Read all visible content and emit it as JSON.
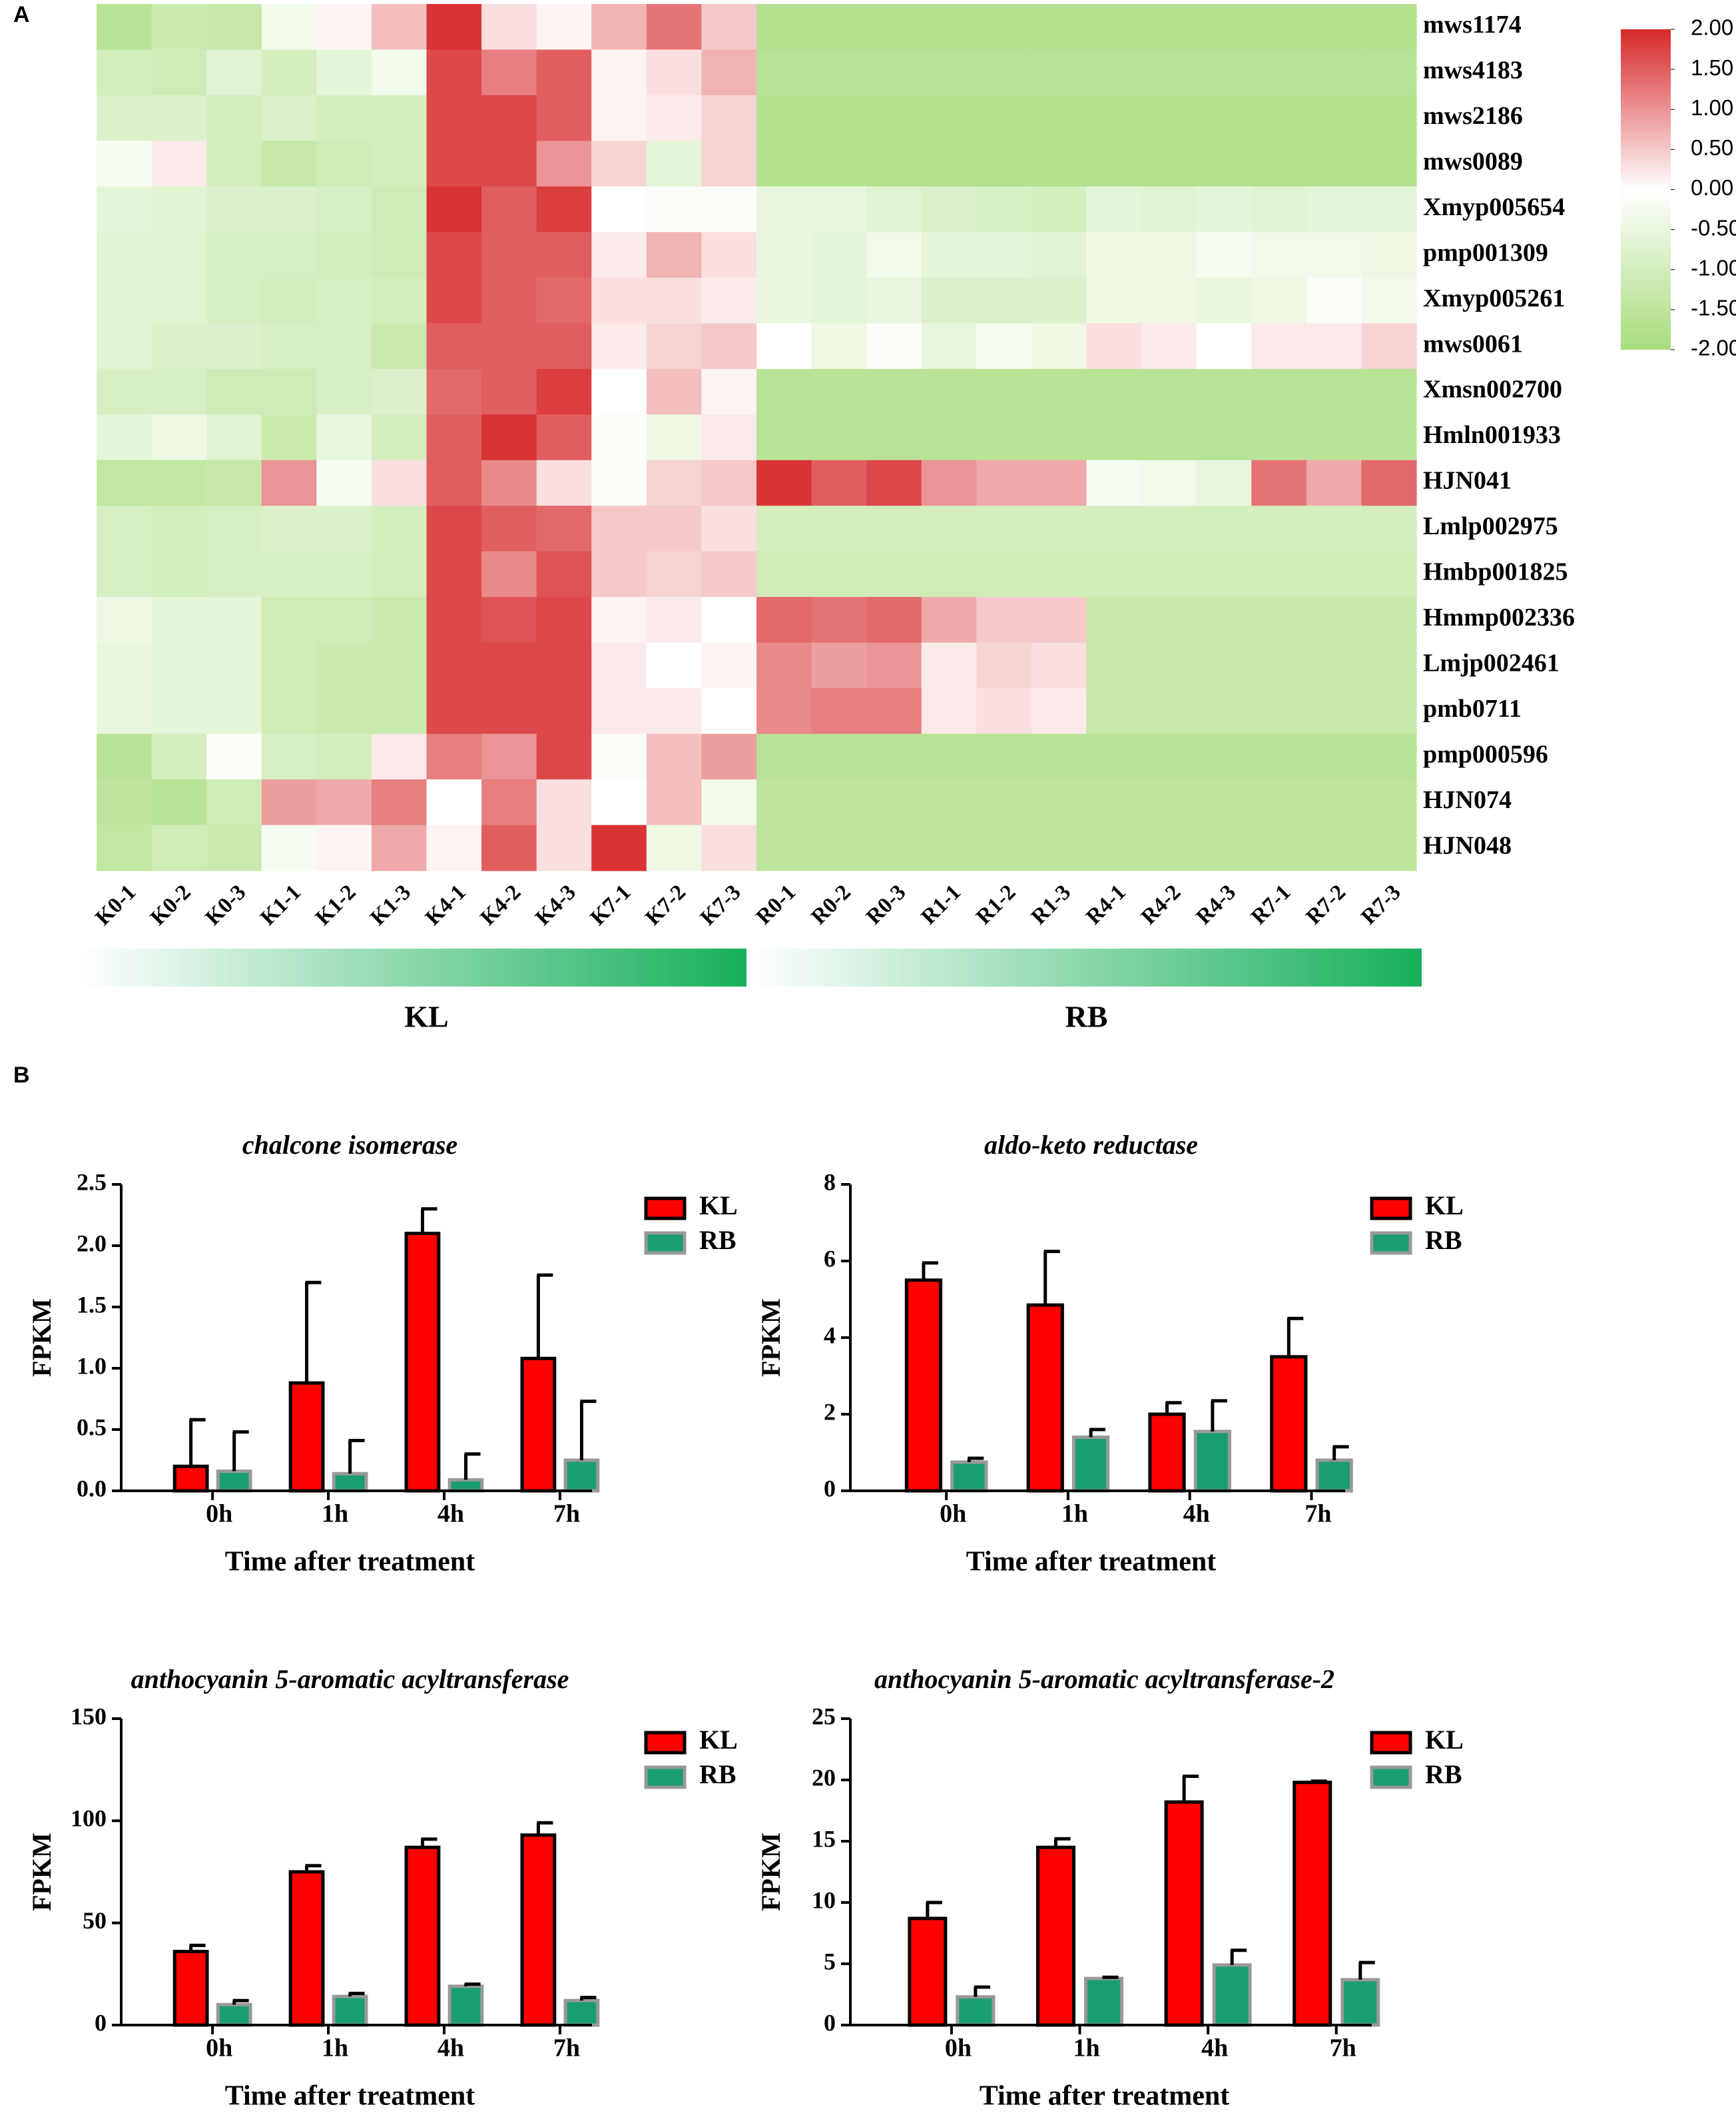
{
  "chart_data": [
    {
      "type": "heatmap",
      "panel": "A",
      "rows": [
        "mws1174",
        "mws4183",
        "mws2186",
        "mws0089",
        "Xmyp005654",
        "pmp001309",
        "Xmyp005261",
        "mws0061",
        "Xmsn002700",
        "Hmln001933",
        "HJN041",
        "Lmlp002975",
        "Hmbp001825",
        "Hmmp002336",
        "Lmjp002461",
        "pmb0711",
        "pmp000596",
        "HJN074",
        "HJN048"
      ],
      "columns": [
        "K0-1",
        "K0-2",
        "K0-3",
        "K1-1",
        "K1-2",
        "K1-3",
        "K4-1",
        "K4-2",
        "K4-3",
        "K7-1",
        "K7-2",
        "K7-3",
        "R0-1",
        "R0-2",
        "R0-3",
        "R1-1",
        "R1-2",
        "R1-3",
        "R4-1",
        "R4-2",
        "R4-3",
        "R7-1",
        "R7-2",
        "R7-3"
      ],
      "groups": [
        "KL",
        "RB"
      ],
      "values": [
        [
          -1.6,
          -1.2,
          -1.3,
          -0.3,
          0.1,
          0.6,
          1.9,
          0.3,
          0.1,
          0.7,
          1.3,
          0.5,
          -1.7,
          -1.7,
          -1.7,
          -1.7,
          -1.7,
          -1.7,
          -1.7,
          -1.7,
          -1.7,
          -1.7,
          -1.7,
          -1.7
        ],
        [
          -1.0,
          -1.1,
          -0.7,
          -1.0,
          -0.6,
          -0.3,
          1.7,
          1.2,
          1.5,
          0.1,
          0.3,
          0.7,
          -1.6,
          -1.6,
          -1.6,
          -1.6,
          -1.6,
          -1.6,
          -1.6,
          -1.6,
          -1.6,
          -1.6,
          -1.6,
          -1.6
        ],
        [
          -0.8,
          -0.8,
          -1.0,
          -0.8,
          -1.0,
          -1.0,
          1.7,
          1.7,
          1.5,
          0.1,
          0.2,
          0.4,
          -1.7,
          -1.7,
          -1.7,
          -1.7,
          -1.7,
          -1.7,
          -1.7,
          -1.7,
          -1.7,
          -1.7,
          -1.7,
          -1.7
        ],
        [
          -0.2,
          0.2,
          -1.0,
          -1.3,
          -1.1,
          -1.0,
          1.7,
          1.7,
          1.0,
          0.4,
          -0.6,
          0.4,
          -1.7,
          -1.7,
          -1.7,
          -1.7,
          -1.7,
          -1.7,
          -1.7,
          -1.7,
          -1.7,
          -1.7,
          -1.7,
          -1.7
        ],
        [
          -0.6,
          -0.7,
          -0.8,
          -0.8,
          -0.9,
          -1.1,
          1.9,
          1.5,
          1.8,
          0.0,
          -0.1,
          -0.1,
          -0.5,
          -0.5,
          -0.7,
          -0.8,
          -0.9,
          -1.0,
          -0.6,
          -0.7,
          -0.6,
          -0.7,
          -0.6,
          -0.6
        ],
        [
          -0.7,
          -0.7,
          -0.9,
          -0.9,
          -1.0,
          -1.1,
          1.7,
          1.5,
          1.5,
          0.2,
          0.7,
          0.3,
          -0.5,
          -0.6,
          -0.3,
          -0.6,
          -0.6,
          -0.7,
          -0.4,
          -0.4,
          -0.2,
          -0.3,
          -0.3,
          -0.4
        ],
        [
          -0.7,
          -0.7,
          -0.9,
          -1.0,
          -0.9,
          -1.0,
          1.7,
          1.5,
          1.4,
          0.3,
          0.3,
          0.2,
          -0.5,
          -0.6,
          -0.5,
          -0.8,
          -0.8,
          -0.8,
          -0.4,
          -0.4,
          -0.5,
          -0.4,
          -0.1,
          -0.3
        ],
        [
          -0.7,
          -0.8,
          -0.8,
          -0.9,
          -0.9,
          -1.2,
          1.5,
          1.5,
          1.5,
          0.2,
          0.4,
          0.5,
          0.0,
          -0.4,
          -0.1,
          -0.5,
          -0.2,
          -0.4,
          0.3,
          0.2,
          0.0,
          0.2,
          0.2,
          0.4
        ],
        [
          -0.9,
          -0.9,
          -1.1,
          -1.1,
          -0.9,
          -0.8,
          1.4,
          1.5,
          1.8,
          0.0,
          0.6,
          0.1,
          -1.6,
          -1.6,
          -1.6,
          -1.6,
          -1.6,
          -1.6,
          -1.6,
          -1.6,
          -1.6,
          -1.6,
          -1.6,
          -1.6
        ],
        [
          -0.6,
          -0.4,
          -0.7,
          -1.2,
          -0.5,
          -1.0,
          1.5,
          1.9,
          1.5,
          -0.1,
          -0.4,
          0.2,
          -1.6,
          -1.6,
          -1.6,
          -1.6,
          -1.6,
          -1.6,
          -1.6,
          -1.6,
          -1.6,
          -1.6,
          -1.6,
          -1.6
        ],
        [
          -1.4,
          -1.4,
          -1.3,
          1.0,
          -0.2,
          0.3,
          1.5,
          1.1,
          0.3,
          -0.1,
          0.4,
          0.5,
          1.9,
          1.5,
          1.7,
          1.0,
          0.8,
          0.8,
          -0.2,
          -0.3,
          -0.5,
          1.3,
          0.8,
          1.4
        ],
        [
          -0.9,
          -1.0,
          -0.9,
          -0.8,
          -0.8,
          -1.0,
          1.7,
          1.5,
          1.4,
          0.5,
          0.5,
          0.3,
          -1.0,
          -1.0,
          -1.0,
          -1.0,
          -1.0,
          -1.0,
          -1.0,
          -1.0,
          -1.0,
          -1.0,
          -1.0,
          -1.0
        ],
        [
          -0.9,
          -1.0,
          -0.9,
          -0.9,
          -0.9,
          -1.0,
          1.7,
          1.1,
          1.6,
          0.5,
          0.4,
          0.5,
          -1.1,
          -1.1,
          -1.1,
          -1.1,
          -1.1,
          -1.1,
          -1.1,
          -1.1,
          -1.1,
          -1.1,
          -1.1,
          -1.1
        ],
        [
          -0.4,
          -0.6,
          -0.6,
          -1.1,
          -1.1,
          -1.2,
          1.7,
          1.6,
          1.7,
          0.1,
          0.2,
          0.0,
          1.4,
          1.3,
          1.4,
          0.8,
          0.5,
          0.5,
          -1.3,
          -1.3,
          -1.3,
          -1.3,
          -1.3,
          -1.3
        ],
        [
          -0.5,
          -0.6,
          -0.6,
          -1.1,
          -1.2,
          -1.2,
          1.7,
          1.7,
          1.7,
          0.2,
          0.0,
          0.1,
          1.1,
          0.9,
          1.0,
          0.2,
          0.4,
          0.3,
          -1.3,
          -1.3,
          -1.3,
          -1.3,
          -1.3,
          -1.3
        ],
        [
          -0.5,
          -0.6,
          -0.6,
          -1.1,
          -1.2,
          -1.2,
          1.7,
          1.7,
          1.7,
          0.2,
          0.2,
          0.0,
          1.1,
          1.2,
          1.2,
          0.2,
          0.3,
          0.2,
          -1.3,
          -1.3,
          -1.3,
          -1.3,
          -1.3,
          -1.3
        ],
        [
          -1.6,
          -1.0,
          -0.1,
          -0.9,
          -1.0,
          0.2,
          1.2,
          1.0,
          1.7,
          -0.1,
          0.6,
          0.9,
          -1.6,
          -1.6,
          -1.6,
          -1.6,
          -1.6,
          -1.6,
          -1.6,
          -1.6,
          -1.6,
          -1.6,
          -1.6,
          -1.6
        ],
        [
          -1.5,
          -1.6,
          -1.1,
          0.9,
          0.8,
          1.2,
          0.0,
          1.2,
          0.3,
          0.0,
          0.6,
          -0.3,
          -1.5,
          -1.5,
          -1.5,
          -1.5,
          -1.5,
          -1.5,
          -1.5,
          -1.5,
          -1.5,
          -1.5,
          -1.5,
          -1.5
        ],
        [
          -1.4,
          -1.1,
          -1.2,
          -0.2,
          0.1,
          0.8,
          0.1,
          1.5,
          0.3,
          1.9,
          -0.4,
          0.3,
          -1.5,
          -1.5,
          -1.5,
          -1.5,
          -1.5,
          -1.5,
          -1.5,
          -1.5,
          -1.5,
          -1.5,
          -1.5,
          -1.5
        ]
      ],
      "colormap": [
        "#a8dc7c",
        "#ffffff",
        "#d7282a"
      ],
      "colorbar_lim": [
        -2,
        2
      ],
      "colorbar_ticks": [
        {
          "value": 2,
          "label": "2.00"
        },
        {
          "value": 1.5,
          "label": "1.50"
        },
        {
          "value": 1,
          "label": "1.00"
        },
        {
          "value": 0.5,
          "label": "0.50"
        },
        {
          "value": 0,
          "label": "0.00"
        },
        {
          "value": -0.5,
          "label": "-0.50"
        },
        {
          "value": -1,
          "label": "-1.00"
        },
        {
          "value": -1.5,
          "label": "-1.50"
        },
        {
          "value": -2,
          "label": "-2.00"
        }
      ]
    },
    {
      "type": "bar",
      "panel": "B",
      "title": "chalcone isomerase",
      "xlabel": "Time after treatment",
      "ylabel": "FPKM",
      "categories": [
        "0h",
        "1h",
        "4h",
        "7h"
      ],
      "ylim": [
        0,
        2.5
      ],
      "yticks": [
        {
          "value": 0,
          "label": "0.0"
        },
        0.5,
        {
          "value": 1,
          "label": "1.0"
        },
        1.5,
        {
          "value": 2,
          "label": "2.0"
        },
        2.5
      ],
      "series": [
        {
          "name": "KL",
          "color": "#ff0000",
          "values": [
            0.2,
            0.88,
            2.1,
            1.08
          ],
          "errors": [
            0.38,
            0.82,
            0.2,
            0.68
          ]
        },
        {
          "name": "RB",
          "color": "#1a9e70",
          "values": [
            0.16,
            0.14,
            0.09,
            0.25
          ],
          "errors": [
            0.32,
            0.27,
            0.21,
            0.48
          ]
        }
      ]
    },
    {
      "type": "bar",
      "title": "aldo-keto reductase",
      "xlabel": "Time after treatment",
      "ylabel": "FPKM",
      "categories": [
        "0h",
        "1h",
        "4h",
        "7h"
      ],
      "ylim": [
        0,
        8
      ],
      "yticks": [
        0,
        2,
        4,
        6,
        8
      ],
      "series": [
        {
          "name": "KL",
          "color": "#ff0000",
          "values": [
            5.5,
            4.85,
            2.0,
            3.5
          ],
          "errors": [
            0.45,
            1.4,
            0.3,
            1.0
          ]
        },
        {
          "name": "RB",
          "color": "#1a9e70",
          "values": [
            0.75,
            1.4,
            1.55,
            0.8
          ],
          "errors": [
            0.1,
            0.2,
            0.8,
            0.35
          ]
        }
      ]
    },
    {
      "type": "bar",
      "title": "anthocyanin 5-aromatic acyltransferase",
      "xlabel": "Time after treatment",
      "ylabel": "FPKM",
      "categories": [
        "0h",
        "1h",
        "4h",
        "7h"
      ],
      "ylim": [
        0,
        150
      ],
      "yticks": [
        0,
        50,
        100,
        150
      ],
      "series": [
        {
          "name": "KL",
          "color": "#ff0000",
          "values": [
            36,
            75,
            87,
            93
          ],
          "errors": [
            3,
            3,
            4,
            6
          ]
        },
        {
          "name": "RB",
          "color": "#1a9e70",
          "values": [
            10,
            14,
            19,
            12
          ],
          "errors": [
            2,
            1.5,
            1,
            1.5
          ]
        }
      ]
    },
    {
      "type": "bar",
      "title": "anthocyanin 5-aromatic acyltransferase-2",
      "xlabel": "Time after treatment",
      "ylabel": "FPKM",
      "categories": [
        "0h",
        "1h",
        "4h",
        "7h"
      ],
      "ylim": [
        0,
        25
      ],
      "yticks": [
        0,
        5,
        10,
        15,
        20,
        25
      ],
      "series": [
        {
          "name": "KL",
          "color": "#ff0000",
          "values": [
            8.7,
            14.5,
            18.2,
            19.8
          ],
          "errors": [
            1.3,
            0.7,
            2.1,
            0.1
          ]
        },
        {
          "name": "RB",
          "color": "#1a9e70",
          "values": [
            2.3,
            3.8,
            4.9,
            3.7
          ],
          "errors": [
            0.8,
            0.1,
            1.2,
            1.4
          ]
        }
      ]
    }
  ]
}
